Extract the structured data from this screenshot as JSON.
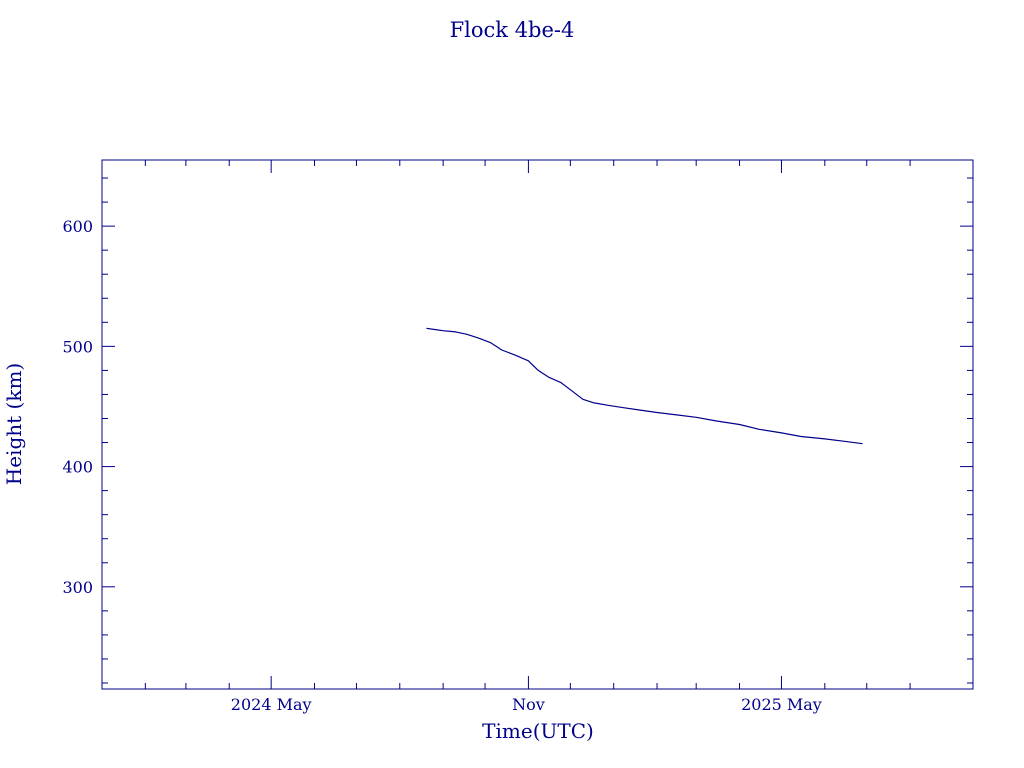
{
  "chart_data": {
    "type": "line",
    "title": "Flock 4be-4",
    "xlabel": "Time(UTC)",
    "ylabel": "Height (km)",
    "colors": {
      "axis": "#00008b",
      "line": "#00008b",
      "background": "#ffffff"
    },
    "grid": false,
    "legend": "none",
    "xlim": [
      "2024-01-01",
      "2025-09-15"
    ],
    "ylim": [
      215,
      655
    ],
    "x_ticks": [
      {
        "date": "2024-05-01",
        "label": "2024 May"
      },
      {
        "date": "2024-11-01",
        "label": "Nov"
      },
      {
        "date": "2025-05-01",
        "label": "2025 May"
      }
    ],
    "x_minor_ticks": [
      "2024-02-01",
      "2024-03-01",
      "2024-04-01",
      "2024-06-01",
      "2024-07-01",
      "2024-08-01",
      "2024-09-01",
      "2024-10-01",
      "2024-12-01",
      "2025-01-01",
      "2025-02-01",
      "2025-03-01",
      "2025-04-01",
      "2025-06-01",
      "2025-07-01",
      "2025-08-01"
    ],
    "y_ticks": [
      300,
      400,
      500,
      600
    ],
    "y_minor_ticks": [
      220,
      240,
      260,
      280,
      320,
      340,
      360,
      380,
      420,
      440,
      460,
      480,
      520,
      540,
      560,
      580,
      620,
      640
    ],
    "series": [
      {
        "x": [
          "2024-08-20",
          "2024-08-26",
          "2024-09-01",
          "2024-09-10",
          "2024-09-18",
          "2024-09-26",
          "2024-10-05",
          "2024-10-13",
          "2024-10-22",
          "2024-11-01",
          "2024-11-08",
          "2024-11-16",
          "2024-11-24",
          "2024-12-02",
          "2024-12-10",
          "2024-12-18",
          "2024-12-28",
          "2025-01-08",
          "2025-01-20",
          "2025-02-01",
          "2025-02-15",
          "2025-03-01",
          "2025-03-15",
          "2025-04-01",
          "2025-04-15",
          "2025-05-01",
          "2025-05-15",
          "2025-06-01",
          "2025-06-15",
          "2025-06-28"
        ],
        "y": [
          515,
          514,
          513,
          512,
          510,
          507,
          503,
          497,
          493,
          488,
          480,
          474,
          470,
          463,
          456,
          453,
          451,
          449,
          447,
          445,
          443,
          441,
          438,
          435,
          431,
          428,
          425,
          423,
          421,
          419
        ]
      }
    ]
  }
}
